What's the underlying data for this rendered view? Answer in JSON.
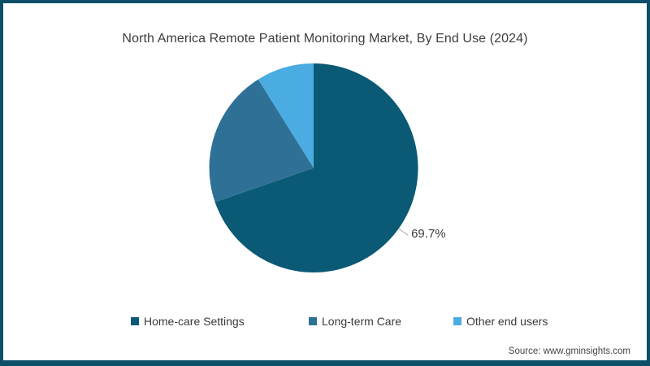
{
  "chart_data": {
    "type": "pie",
    "title": "North America Remote Patient Monitoring Market, By End Use (2024)",
    "categories": [
      "Home-care Settings",
      "Long-term Care",
      "Other end users"
    ],
    "values": [
      69.7,
      21.4,
      8.9
    ],
    "colors": [
      "#0b5a75",
      "#2f7096",
      "#4aace1"
    ],
    "data_label": {
      "slice_index": 0,
      "text": "69.7%"
    },
    "start_angle_deg": 0,
    "direction": "clockwise",
    "legend_position": "bottom",
    "label_text_color": "#3a3a3a",
    "leader_line_color": "#aaaaaa"
  },
  "source": {
    "text": "Source: www.gminsights.com"
  },
  "frame": {
    "border_color": "#0d4e68"
  }
}
